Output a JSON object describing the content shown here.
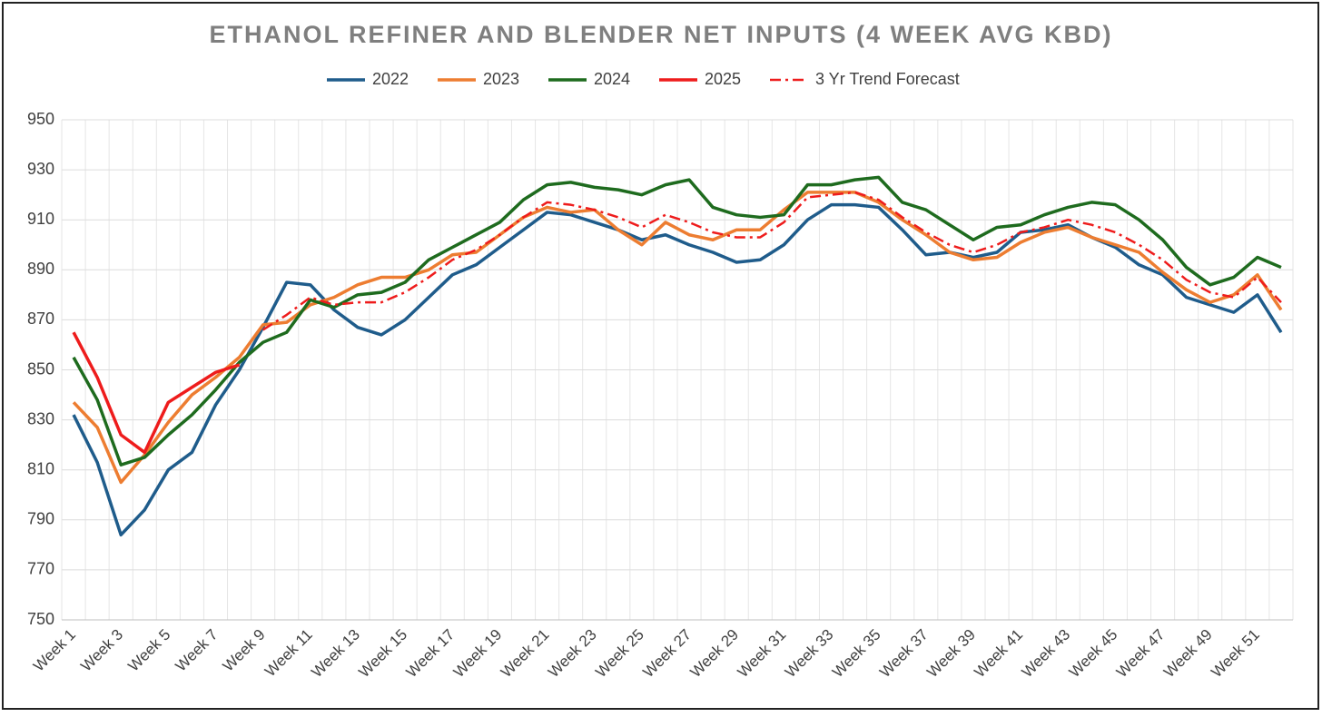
{
  "chart_data": {
    "type": "line",
    "title": "ETHANOL REFINER AND BLENDER NET INPUTS (4 WEEK AVG KBD)",
    "categories": [
      "Week 1",
      null,
      "Week 3",
      null,
      "Week 5",
      null,
      "Week 7",
      null,
      "Week 9",
      null,
      "Week 11",
      null,
      "Week 13",
      null,
      "Week 15",
      null,
      "Week 17",
      null,
      "Week 19",
      null,
      "Week 21",
      null,
      "Week 23",
      null,
      "Week 25",
      null,
      "Week 27",
      null,
      "Week 29",
      null,
      "Week 31",
      null,
      "Week 33",
      null,
      "Week 35",
      null,
      "Week 37",
      null,
      "Week 39",
      null,
      "Week 41",
      null,
      "Week 43",
      null,
      "Week 45",
      null,
      "Week 47",
      null,
      "Week 49",
      null,
      "Week 51",
      null
    ],
    "series": [
      {
        "name": "2022",
        "color": "#1f5c8b",
        "style": "solid",
        "values": [
          832,
          813,
          784,
          794,
          810,
          817,
          836,
          850,
          867,
          885,
          884,
          874,
          867,
          864,
          870,
          879,
          888,
          892,
          899,
          906,
          913,
          912,
          909,
          906,
          902,
          904,
          900,
          897,
          893,
          894,
          900,
          910,
          916,
          916,
          915,
          906,
          896,
          897,
          895,
          897,
          905,
          906,
          908,
          903,
          899,
          892,
          888,
          879,
          876,
          873,
          880,
          865
        ]
      },
      {
        "name": "2023",
        "color": "#ed7d31",
        "style": "solid",
        "values": [
          837,
          827,
          805,
          816,
          829,
          840,
          847,
          855,
          868,
          869,
          876,
          879,
          884,
          887,
          887,
          890,
          896,
          897,
          904,
          911,
          915,
          913,
          914,
          906,
          900,
          909,
          904,
          902,
          906,
          906,
          914,
          921,
          921,
          921,
          917,
          910,
          904,
          897,
          894,
          895,
          901,
          905,
          907,
          903,
          900,
          897,
          889,
          882,
          877,
          880,
          888,
          874
        ]
      },
      {
        "name": "2024",
        "color": "#1e6b1e",
        "style": "solid",
        "values": [
          855,
          838,
          812,
          815,
          824,
          832,
          842,
          853,
          861,
          865,
          878,
          875,
          880,
          881,
          885,
          894,
          899,
          904,
          909,
          918,
          924,
          925,
          923,
          922,
          920,
          924,
          926,
          915,
          912,
          911,
          912,
          924,
          924,
          926,
          927,
          917,
          914,
          908,
          902,
          907,
          908,
          912,
          915,
          917,
          916,
          910,
          902,
          891,
          884,
          887,
          895,
          891
        ]
      },
      {
        "name": "2025",
        "color": "#ee1c1c",
        "style": "solid",
        "values": [
          865,
          847,
          824,
          817,
          837,
          843,
          849,
          852,
          null,
          null,
          null,
          null,
          null,
          null,
          null,
          null,
          null,
          null,
          null,
          null,
          null,
          null,
          null,
          null,
          null,
          null,
          null,
          null,
          null,
          null,
          null,
          null,
          null,
          null,
          null,
          null,
          null,
          null,
          null,
          null,
          null,
          null,
          null,
          null,
          null,
          null,
          null,
          null,
          null,
          null,
          null,
          null
        ]
      },
      {
        "name": "3 Yr Trend Forecast",
        "color": "#ee1c1c",
        "style": "dash-dot",
        "values": [
          null,
          null,
          null,
          null,
          null,
          null,
          null,
          null,
          866,
          872,
          879,
          876,
          877,
          877,
          881,
          887,
          894,
          898,
          904,
          911,
          917,
          916,
          914,
          911,
          907,
          912,
          909,
          905,
          903,
          903,
          909,
          919,
          920,
          921,
          918,
          911,
          905,
          900,
          897,
          900,
          905,
          907,
          910,
          908,
          905,
          900,
          894,
          886,
          881,
          879,
          887,
          877
        ]
      }
    ],
    "ylim": [
      750,
      950
    ],
    "yticks": [
      750,
      770,
      790,
      810,
      830,
      850,
      870,
      890,
      910,
      930,
      950
    ],
    "grid": true,
    "legend": "top"
  }
}
